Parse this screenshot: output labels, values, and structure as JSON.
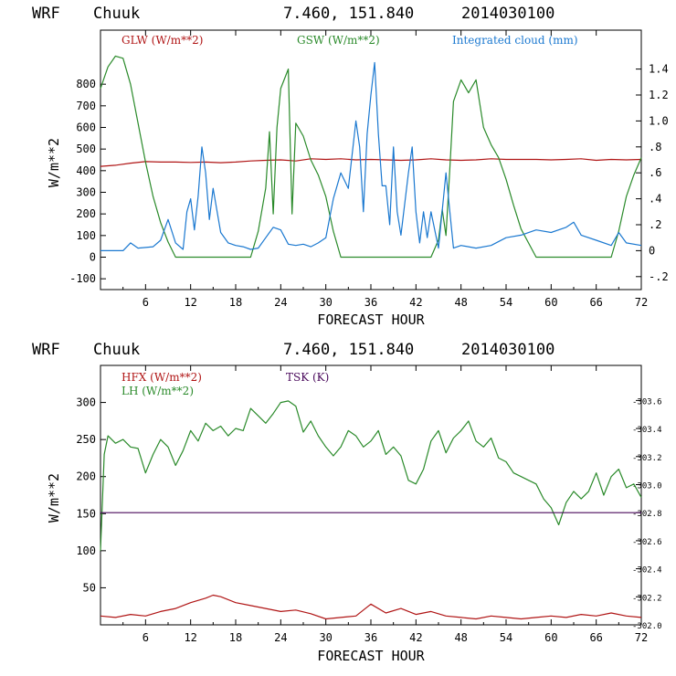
{
  "chart_data": [
    {
      "type": "line",
      "header": {
        "model": "WRF",
        "station": "Chuuk",
        "coords": "7.460, 151.840",
        "date": "2014030100"
      },
      "xlabel": "FORECAST HOUR",
      "ylabel": "W/m**2",
      "xlim": [
        0,
        72
      ],
      "ylim": [
        -150,
        1050
      ],
      "y2lim": [
        -0.3,
        1.7
      ],
      "xticks": [
        "6",
        "12",
        "18",
        "24",
        "30",
        "36",
        "42",
        "48",
        "54",
        "60",
        "66",
        "72"
      ],
      "yticks": [
        "-100",
        "0",
        "100",
        "200",
        "300",
        "400",
        "500",
        "600",
        "700",
        "800"
      ],
      "y2ticks": [
        "-.2",
        "0",
        ".2",
        ".4",
        ".6",
        ".8",
        "1.0",
        "1.2",
        "1.4"
      ],
      "series": [
        {
          "name": "GLW (W/m**2)",
          "color": "#b01515",
          "axis": "left",
          "x": [
            0,
            2,
            4,
            6,
            8,
            10,
            12,
            14,
            16,
            18,
            20,
            22,
            24,
            26,
            28,
            30,
            32,
            34,
            36,
            38,
            40,
            42,
            44,
            46,
            48,
            50,
            52,
            54,
            56,
            58,
            60,
            62,
            64,
            66,
            68,
            70,
            72
          ],
          "values": [
            420,
            425,
            435,
            442,
            440,
            440,
            438,
            440,
            437,
            440,
            445,
            448,
            450,
            445,
            455,
            452,
            455,
            450,
            452,
            450,
            448,
            450,
            455,
            450,
            448,
            450,
            455,
            452,
            452,
            452,
            450,
            452,
            455,
            448,
            452,
            450,
            452
          ]
        },
        {
          "name": "GSW (W/m**2)",
          "color": "#2a8a2a",
          "axis": "left",
          "x": [
            0,
            1,
            2,
            3,
            4,
            5,
            6,
            7,
            8,
            9,
            10,
            20,
            21,
            22,
            22.5,
            23,
            23.5,
            24,
            25,
            25.5,
            26,
            27,
            28,
            29,
            30,
            31,
            32,
            44,
            45,
            45.5,
            46,
            46.5,
            47,
            48,
            49,
            50,
            51,
            52,
            53,
            54,
            55,
            56,
            58,
            68,
            69,
            70,
            71,
            72
          ],
          "values": [
            780,
            880,
            930,
            920,
            800,
            620,
            440,
            280,
            160,
            70,
            0,
            0,
            120,
            320,
            580,
            200,
            600,
            780,
            870,
            200,
            620,
            560,
            450,
            380,
            280,
            120,
            0,
            0,
            80,
            220,
            100,
            400,
            720,
            820,
            760,
            820,
            600,
            520,
            460,
            360,
            240,
            130,
            0,
            0,
            120,
            280,
            380,
            460
          ]
        },
        {
          "name": "Integrated cloud (mm)",
          "color": "#1a78d0",
          "axis": "right",
          "x": [
            0,
            3,
            4,
            5,
            7,
            8,
            9,
            10,
            11,
            11.5,
            12,
            12.5,
            13,
            13.5,
            14,
            14.5,
            15,
            16,
            17,
            18,
            19,
            20,
            21,
            22,
            23,
            24,
            25,
            26,
            27,
            28,
            29,
            30,
            31,
            32,
            33,
            34,
            34.5,
            35,
            35.5,
            36,
            36.5,
            37,
            37.5,
            38,
            38.5,
            39,
            39.5,
            40,
            41,
            41.5,
            42,
            42.5,
            43,
            43.5,
            44,
            45,
            46,
            47,
            48,
            50,
            52,
            54,
            56,
            58,
            60,
            62,
            63,
            64,
            66,
            68,
            69,
            70,
            72
          ],
          "values": [
            0,
            0,
            0.06,
            0.02,
            0.03,
            0.08,
            0.24,
            0.06,
            0.01,
            0.3,
            0.4,
            0.16,
            0.42,
            0.8,
            0.6,
            0.24,
            0.48,
            0.14,
            0.06,
            0.04,
            0.03,
            0.01,
            0.02,
            0.1,
            0.18,
            0.16,
            0.05,
            0.04,
            0.05,
            0.03,
            0.06,
            0.1,
            0.4,
            0.6,
            0.48,
            1.0,
            0.8,
            0.3,
            0.9,
            1.2,
            1.45,
            0.9,
            0.5,
            0.5,
            0.2,
            0.8,
            0.3,
            0.12,
            0.6,
            0.8,
            0.3,
            0.06,
            0.3,
            0.1,
            0.3,
            0.02,
            0.6,
            0.02,
            0.04,
            0.02,
            0.04,
            0.1,
            0.12,
            0.16,
            0.14,
            0.18,
            0.22,
            0.12,
            0.08,
            0.04,
            0.14,
            0.06,
            0.04
          ]
        }
      ]
    },
    {
      "type": "line",
      "header": {
        "model": "WRF",
        "station": "Chuuk",
        "coords": "7.460, 151.840",
        "date": "2014030100"
      },
      "xlabel": "FORECAST HOUR",
      "ylabel": "W/m**2",
      "xlim": [
        0,
        72
      ],
      "ylim": [
        0,
        350
      ],
      "y2lim": [
        302.0,
        303.85
      ],
      "xticks": [
        "6",
        "12",
        "18",
        "24",
        "30",
        "36",
        "42",
        "48",
        "54",
        "60",
        "66",
        "72"
      ],
      "yticks": [
        "50",
        "100",
        "150",
        "200",
        "250",
        "300"
      ],
      "y2ticks": [
        "302.0",
        "302.2",
        "302.4",
        "302.6",
        "302.8",
        "303.0",
        "303.2",
        "303.4",
        "303.6"
      ],
      "series": [
        {
          "name": "HFX (W/m**2)",
          "color": "#b01515",
          "axis": "left",
          "x": [
            0,
            2,
            4,
            6,
            8,
            10,
            12,
            14,
            15,
            16,
            18,
            20,
            22,
            24,
            26,
            28,
            30,
            32,
            34,
            36,
            38,
            40,
            42,
            44,
            46,
            48,
            50,
            52,
            54,
            56,
            58,
            60,
            62,
            64,
            66,
            68,
            70,
            72
          ],
          "values": [
            12,
            10,
            14,
            12,
            18,
            22,
            30,
            36,
            40,
            38,
            30,
            26,
            22,
            18,
            20,
            15,
            8,
            10,
            12,
            28,
            16,
            22,
            14,
            18,
            12,
            10,
            8,
            12,
            10,
            8,
            10,
            12,
            10,
            14,
            12,
            16,
            12,
            10
          ]
        },
        {
          "name": "LH (W/m**2)",
          "color": "#2a8a2a",
          "axis": "left",
          "x": [
            0,
            0.5,
            1,
            2,
            3,
            4,
            5,
            6,
            7,
            8,
            9,
            10,
            11,
            12,
            13,
            14,
            15,
            16,
            17,
            18,
            19,
            20,
            21,
            22,
            23,
            24,
            25,
            26,
            27,
            28,
            29,
            30,
            31,
            32,
            33,
            34,
            35,
            36,
            37,
            38,
            39,
            40,
            41,
            42,
            43,
            44,
            45,
            46,
            47,
            48,
            49,
            50,
            51,
            52,
            53,
            54,
            55,
            56,
            57,
            58,
            59,
            60,
            61,
            62,
            63,
            64,
            65,
            66,
            67,
            68,
            69,
            70,
            71,
            72
          ],
          "values": [
            100,
            230,
            255,
            245,
            250,
            240,
            238,
            205,
            230,
            250,
            240,
            215,
            235,
            262,
            248,
            272,
            262,
            268,
            255,
            265,
            262,
            292,
            282,
            272,
            285,
            300,
            302,
            295,
            260,
            275,
            255,
            240,
            228,
            240,
            262,
            255,
            240,
            248,
            262,
            230,
            240,
            228,
            195,
            190,
            210,
            248,
            262,
            232,
            252,
            262,
            275,
            248,
            240,
            252,
            225,
            220,
            205,
            200,
            195,
            190,
            170,
            158,
            135,
            165,
            180,
            170,
            180,
            205,
            175,
            200,
            210,
            185,
            190,
            172
          ]
        },
        {
          "name": "TSK (K)",
          "color": "#4a0a5c",
          "axis": "right",
          "x": [
            0,
            72
          ],
          "values": [
            302.8,
            302.8
          ]
        }
      ]
    }
  ]
}
